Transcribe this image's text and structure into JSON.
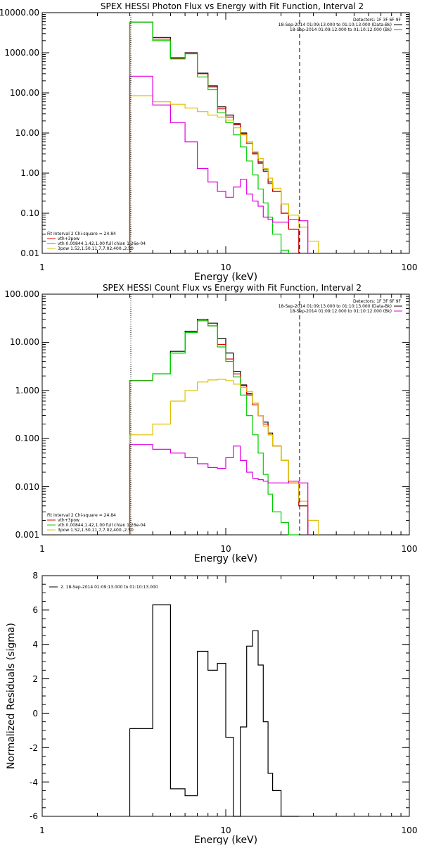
{
  "charts": [
    {
      "title": "SPEX HESSI Photon Flux vs Energy with Fit Function, Interval 2",
      "xlabel": "Energy (keV)",
      "ylabel": "",
      "xticks": [
        "1",
        "10",
        "100"
      ],
      "yticks": [
        "10000.00",
        "1000.00",
        "100.00",
        "10.00",
        "1.00",
        "0.10",
        "0.01"
      ],
      "detectors": "Detectors: 1F 3F 6F 9F",
      "time_black": "18-Sep-2014 01:09:13.000 to 01:10:13.000 (Data-Bk)",
      "time_magenta": "18-Sep-2014 01:09:12.000 to 01:10:12.000 (Bk)",
      "leg_fit": "Fit Interval 2   Chi-square = 24.84",
      "leg_red": "vth+3pow",
      "leg_green": "vth 0.00844,1.42,1.00  full chian 1.26e-04",
      "leg_gold": "3pow 1.52,1.50,11.7,7.02,400.,2.50"
    },
    {
      "title": "SPEX HESSI Count Flux vs Energy with Fit Function, Interval 2",
      "xlabel": "Energy (keV)",
      "ylabel": "",
      "xticks": [
        "1",
        "10",
        "100"
      ],
      "yticks": [
        "100.000",
        "10.000",
        "1.000",
        "0.100",
        "0.010",
        "0.001"
      ],
      "detectors": "Detectors: 1F 3F 6F 9F",
      "time_black": "18-Sep-2014 01:09:13.000 to 01:10:13.000 (Data-Bk)",
      "time_magenta": "18-Sep-2014 01:09:12.000 to 01:10:12.000 (Bk)",
      "leg_fit": "Fit Interval 2   Chi-square = 24.84",
      "leg_red": "vth+3pow",
      "leg_green": "vth 0.00844,1.42,1.00  full chian 1.26e-04",
      "leg_gold": "3pow 1.52,1.50,11.7,7.02,400.,2.50"
    },
    {
      "title": "",
      "xlabel": "Energy (keV)",
      "ylabel": "Normalized Residuals (sigma)",
      "xticks": [
        "1",
        "10",
        "100"
      ],
      "yticks": [
        "8",
        "6",
        "4",
        "2",
        "0",
        "-2",
        "-4",
        "-6"
      ],
      "leg_resid": "2. 18-Sep-2014 01:09:13.000 to 01:10:13.000"
    }
  ],
  "colors": {
    "data": "#000000",
    "total_fit": "#e00000",
    "thermal": "#00cc00",
    "power_law": "#e0c000",
    "background": "#e000e0",
    "threshold_line": "#000000"
  },
  "chart_data": [
    {
      "type": "line",
      "title": "SPEX HESSI Photon Flux vs Energy with Fit Function, Interval 2",
      "xlabel": "Energy (keV)",
      "xscale": "log",
      "yscale": "log",
      "xlim": [
        1,
        100
      ],
      "ylim": [
        0.01,
        10000
      ],
      "vlines": [
        3,
        25
      ],
      "edges": [
        3,
        4,
        5,
        6,
        7,
        8,
        9,
        10,
        11,
        12,
        13,
        14,
        15,
        16,
        17,
        18,
        20,
        22,
        25,
        28,
        32
      ],
      "series": [
        {
          "name": "Data-Bk",
          "color": "#000000",
          "values": [
            5800,
            2400,
            750,
            1000,
            310,
            150,
            45,
            28,
            17,
            10,
            6,
            3.2,
            1.9,
            1.2,
            0.6,
            0.35,
            0.1,
            0.04,
            null,
            null
          ]
        },
        {
          "name": "vth+3pow",
          "color": "#e00000",
          "values": [
            5800,
            2200,
            730,
            980,
            300,
            140,
            40,
            25,
            16,
            9.5,
            5.5,
            3.0,
            1.75,
            1.1,
            0.55,
            0.35,
            0.1,
            0.04,
            null,
            null
          ]
        },
        {
          "name": "vth",
          "color": "#00cc00",
          "values": [
            5800,
            2000,
            700,
            940,
            250,
            120,
            32,
            18,
            9,
            4.5,
            2.0,
            0.9,
            0.4,
            0.18,
            0.08,
            0.03,
            0.012,
            null,
            null,
            null
          ]
        },
        {
          "name": "3pow",
          "color": "#e0c000",
          "values": [
            85,
            60,
            52,
            42,
            34,
            28,
            25,
            21,
            13.5,
            9,
            6,
            3.4,
            2.3,
            1.3,
            0.75,
            0.42,
            0.17,
            0.09,
            0.045,
            0.02
          ]
        },
        {
          "name": "Bk",
          "color": "#e000e0",
          "values": [
            260,
            50,
            18,
            6,
            1.3,
            0.6,
            0.35,
            0.25,
            0.45,
            0.7,
            0.3,
            0.2,
            0.15,
            0.08,
            0.07,
            0.06,
            0.06,
            0.07,
            0.065,
            null
          ]
        }
      ]
    },
    {
      "type": "line",
      "title": "SPEX HESSI Count Flux vs Energy with Fit Function, Interval 2",
      "xlabel": "Energy (keV)",
      "xscale": "log",
      "yscale": "log",
      "xlim": [
        1,
        100
      ],
      "ylim": [
        0.001,
        100
      ],
      "vlines": [
        3,
        25
      ],
      "edges": [
        3,
        4,
        5,
        6,
        7,
        8,
        9,
        10,
        11,
        12,
        13,
        14,
        15,
        16,
        17,
        18,
        20,
        22,
        25,
        28,
        32
      ],
      "series": [
        {
          "name": "Data-Bk",
          "color": "#000000",
          "values": [
            1.6,
            2.2,
            6.5,
            17,
            30,
            25,
            12,
            6,
            2.5,
            1.3,
            0.85,
            0.55,
            0.3,
            0.22,
            0.13,
            0.07,
            0.035,
            0.012,
            0.004,
            null
          ]
        },
        {
          "name": "vth+3pow",
          "color": "#e00000",
          "values": [
            1.6,
            2.2,
            6,
            16,
            28,
            22,
            9,
            4.5,
            2.2,
            1.25,
            0.8,
            0.5,
            0.3,
            0.2,
            0.12,
            0.07,
            0.035,
            0.012,
            0.004,
            null
          ]
        },
        {
          "name": "vth",
          "color": "#00cc00",
          "values": [
            1.6,
            2.2,
            6,
            16,
            28,
            22,
            8,
            4,
            1.9,
            0.8,
            0.3,
            0.12,
            0.05,
            0.018,
            0.007,
            0.003,
            0.0018,
            0.001,
            null,
            null
          ]
        },
        {
          "name": "3pow",
          "color": "#e0c000",
          "values": [
            0.12,
            0.2,
            0.6,
            1.0,
            1.5,
            1.65,
            1.7,
            1.6,
            1.35,
            1.15,
            0.95,
            0.55,
            0.3,
            0.18,
            0.12,
            0.07,
            0.035,
            0.012,
            0.005,
            0.002
          ]
        },
        {
          "name": "Bk",
          "color": "#e000e0",
          "values": [
            0.075,
            0.06,
            0.05,
            0.04,
            0.03,
            0.025,
            0.024,
            0.04,
            0.07,
            0.035,
            0.02,
            0.015,
            0.014,
            0.013,
            0.012,
            0.012,
            0.012,
            0.013,
            0.012,
            null
          ]
        }
      ]
    },
    {
      "type": "line",
      "title": "",
      "xlabel": "Energy (keV)",
      "ylabel": "Normalized Residuals (sigma)",
      "xscale": "log",
      "yscale": "linear",
      "xlim": [
        1,
        100
      ],
      "ylim": [
        -6,
        8
      ],
      "edges": [
        3,
        4,
        5,
        6,
        7,
        8,
        9,
        10,
        11,
        12,
        13,
        14,
        15,
        16,
        17,
        18,
        20,
        22,
        25
      ],
      "series": [
        {
          "name": "2. 18-Sep-2014 01:09:13.000 to 01:10:13.000",
          "color": "#000000",
          "values": [
            -0.9,
            6.3,
            -4.4,
            -4.8,
            3.6,
            2.5,
            2.9,
            -1.4,
            -6.2,
            -0.8,
            3.9,
            4.8,
            2.8,
            -0.5,
            -3.5,
            -4.5,
            -6.2,
            -6.2
          ]
        }
      ]
    }
  ]
}
